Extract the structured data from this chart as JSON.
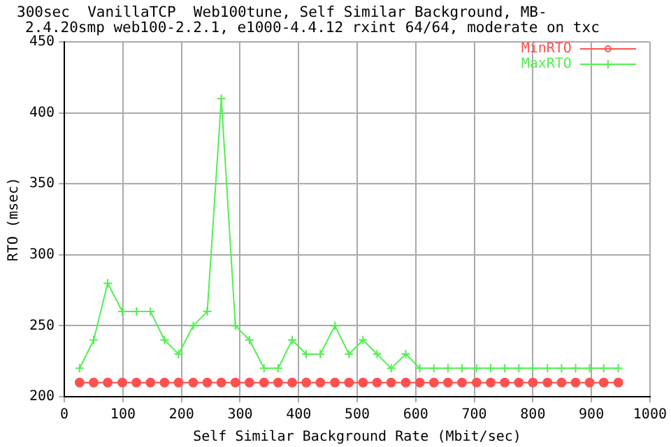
{
  "chart_data": {
    "type": "line",
    "title": "300sec  VanillaTCP  Web100tune, Self Similar Background, MB-",
    "subtitle": "2.4.20smp web100-2.2.1, e1000-4.4.12 rxint 64/64, moderate on txc",
    "xlabel": "Self Similar Background Rate (Mbit/sec)",
    "ylabel": "RTO (msec)",
    "x": [
      26,
      50,
      74,
      99,
      123,
      147,
      171,
      195,
      220,
      244,
      268,
      292,
      316,
      341,
      365,
      389,
      413,
      437,
      462,
      486,
      510,
      534,
      558,
      583,
      607,
      631,
      655,
      679,
      704,
      728,
      752,
      776,
      800,
      825,
      849,
      873,
      897,
      921,
      946
    ],
    "series": [
      {
        "name": "MinRTO",
        "color": "#ff5050",
        "marker": "circle",
        "values": [
          210,
          210,
          210,
          210,
          210,
          210,
          210,
          210,
          210,
          210,
          210,
          210,
          210,
          210,
          210,
          210,
          210,
          210,
          210,
          210,
          210,
          210,
          210,
          210,
          210,
          210,
          210,
          210,
          210,
          210,
          210,
          210,
          210,
          210,
          210,
          210,
          210,
          210,
          210
        ]
      },
      {
        "name": "MaxRTO",
        "color": "#50f050",
        "marker": "cross",
        "values": [
          220,
          240,
          280,
          260,
          260,
          260,
          240,
          230,
          250,
          260,
          410,
          250,
          240,
          220,
          220,
          240,
          230,
          230,
          250,
          230,
          240,
          230,
          220,
          230,
          220,
          220,
          220,
          220,
          220,
          220,
          220,
          220,
          220,
          220,
          220,
          220,
          220,
          220,
          220
        ]
      }
    ],
    "xlim": [
      0,
      1000
    ],
    "xticks": [
      0,
      100,
      200,
      300,
      400,
      500,
      600,
      700,
      800,
      900,
      1000
    ],
    "ylim": [
      200,
      450
    ],
    "yticks": [
      200,
      250,
      300,
      350,
      400,
      450
    ],
    "grid": true,
    "legend": "top right"
  }
}
